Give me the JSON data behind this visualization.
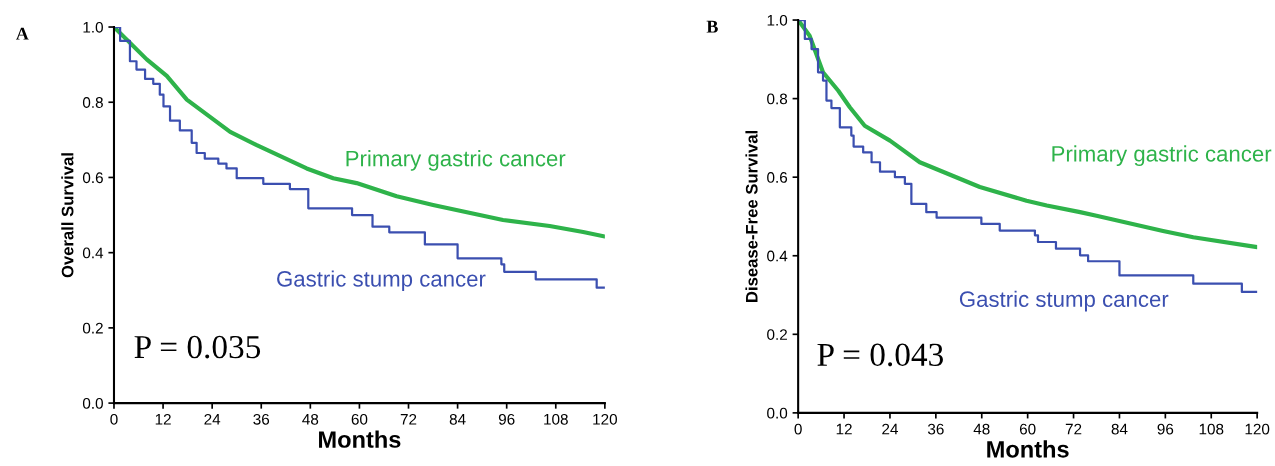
{
  "chart_data": [
    {
      "type": "line",
      "xlabel": "Months",
      "ylabel": "Overall Survival",
      "xlim": [
        0,
        120
      ],
      "xticks": [
        0,
        12,
        24,
        36,
        48,
        60,
        72,
        84,
        96,
        108,
        120
      ],
      "ylim": [
        0,
        1
      ],
      "yticks": [
        {
          "value": 0,
          "label": "0.0"
        },
        {
          "value": 0.2,
          "label": "0.2"
        },
        {
          "value": 0.4,
          "label": "0.4"
        },
        {
          "value": 0.6,
          "label": "0.6"
        },
        {
          "value": 0.8,
          "label": "0.8"
        },
        {
          "value": 1,
          "label": "1.0"
        }
      ],
      "grid": false,
      "annotations": [
        "A",
        "P = 0.035"
      ],
      "series": [
        {
          "name": "Primary gastric cancer",
          "color": "#2eb34a",
          "x": [
            0,
            8,
            12.9,
            17.8,
            28.4,
            34.9,
            47.1,
            53.6,
            59.3,
            69.1,
            78,
            95.1,
            106.5,
            114.7,
            120
          ],
          "values": [
            1.0,
            0.914,
            0.87,
            0.807,
            0.721,
            0.686,
            0.624,
            0.598,
            0.585,
            0.55,
            0.527,
            0.487,
            0.471,
            0.455,
            0.443
          ]
        },
        {
          "name": "Gastric stump cancer",
          "type": "step",
          "color": "#3b4fb0",
          "x": [
            0,
            1.5,
            3.9,
            5.5,
            7.6,
            9.6,
            11.2,
            12.1,
            13.7,
            16.1,
            19,
            20.2,
            22.2,
            25.5,
            27.5,
            30,
            36.5,
            43,
            47.5,
            58.2,
            63.2,
            67.3,
            76,
            84,
            94.7,
            95.4,
            103.1,
            118,
            120
          ],
          "values": [
            1.0,
            0.963,
            0.909,
            0.887,
            0.862,
            0.849,
            0.82,
            0.789,
            0.751,
            0.725,
            0.692,
            0.665,
            0.65,
            0.637,
            0.624,
            0.598,
            0.583,
            0.569,
            0.518,
            0.5,
            0.469,
            0.454,
            0.422,
            0.385,
            0.369,
            0.349,
            0.329,
            0.307,
            0.307
          ]
        }
      ]
    },
    {
      "type": "line",
      "xlabel": "Months",
      "ylabel": "Disease-Free Survival",
      "xlim": [
        0,
        120
      ],
      "xticks": [
        0,
        12,
        24,
        36,
        48,
        60,
        72,
        84,
        96,
        108,
        120
      ],
      "ylim": [
        0,
        1
      ],
      "yticks": [
        {
          "value": 0,
          "label": "0.0"
        },
        {
          "value": 0.2,
          "label": "0.2"
        },
        {
          "value": 0.4,
          "label": "0.4"
        },
        {
          "value": 0.6,
          "label": "0.6"
        },
        {
          "value": 0.8,
          "label": "0.8"
        },
        {
          "value": 1,
          "label": "1.0"
        }
      ],
      "grid": false,
      "annotations": [
        "B",
        "P = 0.043"
      ],
      "series": [
        {
          "name": "Primary gastric cancer",
          "color": "#2eb34a",
          "x": [
            0,
            3,
            6.5,
            10.5,
            13.5,
            17.4,
            24,
            31.8,
            47.5,
            59.7,
            65,
            73.7,
            78,
            95.4,
            103.3,
            120
          ],
          "values": [
            1.0,
            0.96,
            0.867,
            0.82,
            0.778,
            0.731,
            0.693,
            0.638,
            0.575,
            0.54,
            0.528,
            0.511,
            0.502,
            0.463,
            0.447,
            0.422
          ]
        },
        {
          "name": "Gastric stump cancer",
          "type": "step",
          "color": "#3b4fb0",
          "x": [
            0,
            1.75,
            3.5,
            5.2,
            6.5,
            7.4,
            8.7,
            10.9,
            13.9,
            14.5,
            17,
            19.2,
            21.4,
            25.3,
            27.9,
            29.6,
            33.5,
            36.2,
            47.9,
            52.7,
            61.9,
            62.7,
            67.4,
            73.7,
            75.8,
            84,
            103.3,
            116,
            120
          ],
          "values": [
            1.0,
            0.952,
            0.926,
            0.867,
            0.846,
            0.795,
            0.776,
            0.727,
            0.706,
            0.678,
            0.663,
            0.638,
            0.614,
            0.6,
            0.583,
            0.532,
            0.511,
            0.497,
            0.481,
            0.464,
            0.452,
            0.435,
            0.418,
            0.401,
            0.386,
            0.35,
            0.329,
            0.308,
            0.308
          ]
        }
      ]
    }
  ]
}
